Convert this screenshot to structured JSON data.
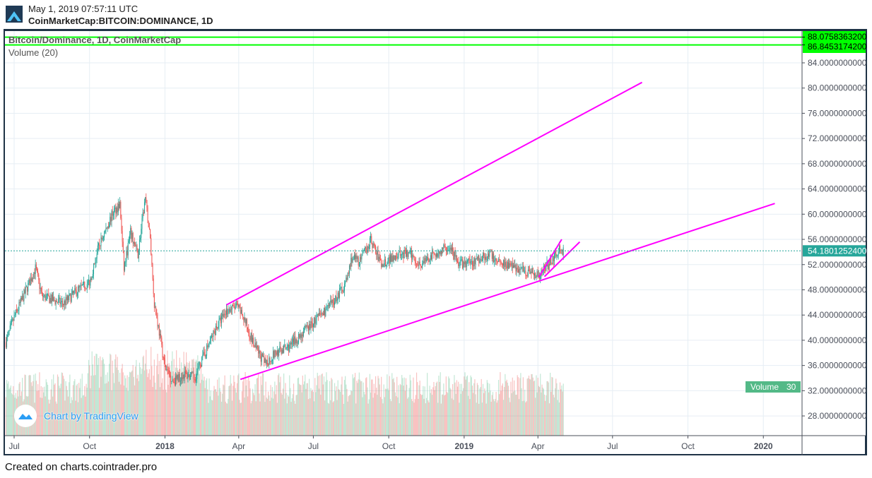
{
  "header": {
    "timestamp": "May 1, 2019 07:57:11 UTC",
    "symbol": "CoinMarketCap:BITCOIN:DOMINANCE, 1D"
  },
  "legend": {
    "main": "Bitcoin/Dominance, 1D, CoinMarketCap",
    "volume": "Volume (20)"
  },
  "watermark": "Chart by TradingView",
  "footer": "Created on charts.cointrader.pro",
  "colors": {
    "up": "#26a69a",
    "down": "#ef5350",
    "trend": "#ff00ff",
    "level": "#00ff00",
    "last": "#26a69a",
    "volume_label": "#53b987"
  },
  "chart_data": {
    "type": "candlestick",
    "title": "Bitcoin/Dominance, 1D, CoinMarketCap",
    "x_unit": "days since 2017-07-01",
    "x_ticks": [
      {
        "label": "Jul",
        "day": 0,
        "bold": false
      },
      {
        "label": "Oct",
        "day": 92,
        "bold": false
      },
      {
        "label": "2018",
        "day": 184,
        "bold": true
      },
      {
        "label": "Apr",
        "day": 274,
        "bold": false
      },
      {
        "label": "Jul",
        "day": 365,
        "bold": false
      },
      {
        "label": "Oct",
        "day": 457,
        "bold": false
      },
      {
        "label": "2019",
        "day": 549,
        "bold": true
      },
      {
        "label": "Apr",
        "day": 639,
        "bold": false
      },
      {
        "label": "Jul",
        "day": 730,
        "bold": false
      },
      {
        "label": "Oct",
        "day": 822,
        "bold": false
      },
      {
        "label": "2020",
        "day": 914,
        "bold": true
      }
    ],
    "xlim": [
      -12,
      965
    ],
    "ylim": [
      25.1,
      89.0
    ],
    "y_ticks": [
      "28.0000000000",
      "32.0000000000",
      "36.0000000000",
      "40.0000000000",
      "44.0000000000",
      "48.0000000000",
      "52.0000000000",
      "56.0000000000",
      "60.0000000000",
      "64.0000000000",
      "68.0000000000",
      "72.0000000000",
      "76.0000000000",
      "80.0000000000",
      "84.0000000000"
    ],
    "close_path": [
      [
        -10,
        39.7
      ],
      [
        0,
        43.6
      ],
      [
        26,
        51.4
      ],
      [
        34,
        47
      ],
      [
        60,
        45.8
      ],
      [
        78,
        48
      ],
      [
        92,
        49.2
      ],
      [
        103,
        54.8
      ],
      [
        121,
        60.4
      ],
      [
        129,
        61.5
      ],
      [
        134,
        51.4
      ],
      [
        142,
        57
      ],
      [
        151,
        53.6
      ],
      [
        160,
        62.6
      ],
      [
        166,
        56
      ],
      [
        171,
        45.8
      ],
      [
        177,
        41.3
      ],
      [
        184,
        35.7
      ],
      [
        194,
        33.5
      ],
      [
        207,
        34.6
      ],
      [
        220,
        34
      ],
      [
        233,
        38
      ],
      [
        246,
        41.9
      ],
      [
        259,
        44.7
      ],
      [
        272,
        45.3
      ],
      [
        280,
        43.6
      ],
      [
        293,
        39.1
      ],
      [
        306,
        36.3
      ],
      [
        319,
        38
      ],
      [
        336,
        39
      ],
      [
        353,
        41.3
      ],
      [
        371,
        43.6
      ],
      [
        388,
        45.8
      ],
      [
        405,
        49.2
      ],
      [
        412,
        53.1
      ],
      [
        422,
        52.5
      ],
      [
        435,
        55.9
      ],
      [
        448,
        52
      ],
      [
        466,
        53.6
      ],
      [
        483,
        53.6
      ],
      [
        496,
        52
      ],
      [
        513,
        53.6
      ],
      [
        530,
        54.8
      ],
      [
        543,
        52
      ],
      [
        560,
        52.5
      ],
      [
        578,
        53.6
      ],
      [
        595,
        52.5
      ],
      [
        612,
        51.4
      ],
      [
        629,
        50.9
      ],
      [
        640,
        50.3
      ],
      [
        651,
        52
      ],
      [
        664,
        54.2
      ],
      [
        670,
        54.18
      ]
    ],
    "last_price": "54.1801252400",
    "horizontal_levels": [
      {
        "value": 88.07583632,
        "label": "88.0758363200"
      },
      {
        "value": 86.84531742,
        "label": "86.8453174200"
      }
    ],
    "trend_lines": [
      [
        [
          259,
          45.6
        ],
        [
          766,
          80.9
        ]
      ],
      [
        [
          276,
          33.8
        ],
        [
          928,
          61.7
        ]
      ],
      [
        [
          640,
          50.0
        ],
        [
          668,
          56.0
        ]
      ],
      [
        [
          647,
          50.1
        ],
        [
          690,
          55.6
        ]
      ]
    ],
    "volume": {
      "label": "Volume",
      "value": "30"
    }
  }
}
